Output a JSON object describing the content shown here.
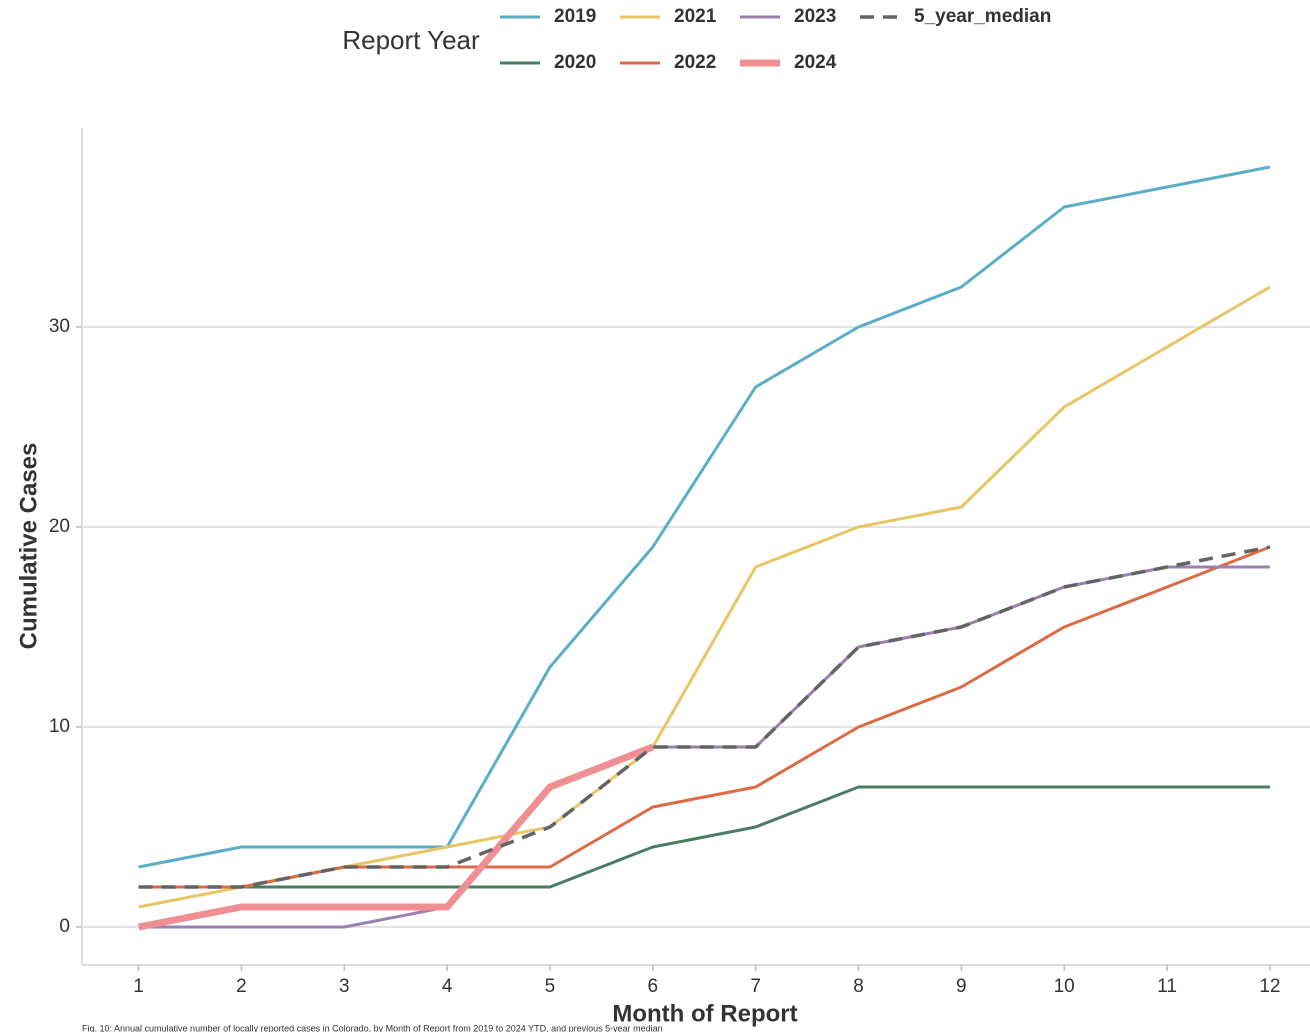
{
  "chart_data": {
    "type": "line",
    "legend_title": "Report Year",
    "xlabel": "Month of Report",
    "ylabel": "Cumulative Cases",
    "caption": "Fig. 10: Annual cumulative number of locally reported cases in Colorado, by Month of Report from 2019 to 2024 YTD, and previous 5-year median",
    "x": [
      1,
      2,
      3,
      4,
      5,
      6,
      7,
      8,
      9,
      10,
      11,
      12
    ],
    "xlim": [
      0.45,
      12.39
    ],
    "xticks": [
      1,
      2,
      3,
      4,
      5,
      6,
      7,
      8,
      9,
      10,
      11,
      12
    ],
    "ylim": [
      -1.9,
      39.95
    ],
    "yticks": [
      0,
      10,
      20,
      30
    ],
    "grid": true,
    "legend": "top",
    "series": [
      {
        "name": "2019",
        "color": "#5aafc6",
        "linewidth": 3,
        "values": [
          3,
          4,
          4,
          4,
          13,
          19,
          27,
          30,
          32,
          36,
          37,
          38
        ]
      },
      {
        "name": "2020",
        "color": "#4a7c64",
        "linewidth": 3,
        "values": [
          2,
          2,
          2,
          2,
          2,
          4,
          5,
          7,
          7,
          7,
          7,
          7
        ]
      },
      {
        "name": "2021",
        "color": "#e8c565",
        "linewidth": 3,
        "values": [
          1,
          2,
          3,
          4,
          5,
          9,
          18,
          20,
          21,
          26,
          29,
          32
        ]
      },
      {
        "name": "2022",
        "color": "#dc6b44",
        "linewidth": 3,
        "values": [
          2,
          2,
          3,
          3,
          3,
          6,
          7,
          10,
          12,
          15,
          17,
          19
        ]
      },
      {
        "name": "2023",
        "color": "#9b7fb1",
        "linewidth": 3,
        "values": [
          0,
          0,
          0,
          1,
          7,
          9,
          9,
          14,
          15,
          17,
          18,
          18
        ]
      },
      {
        "name": "2024",
        "color": "#ee9093",
        "linewidth": 7,
        "values": [
          0,
          1,
          1,
          1,
          7,
          9,
          null,
          null,
          null,
          null,
          null,
          null
        ]
      },
      {
        "name": "5_year_median",
        "color": "#636363",
        "linewidth": 3.5,
        "linestyle": "dashed",
        "values": [
          2,
          2,
          3,
          3,
          5,
          9,
          9,
          14,
          15,
          17,
          18,
          19
        ]
      }
    ]
  }
}
